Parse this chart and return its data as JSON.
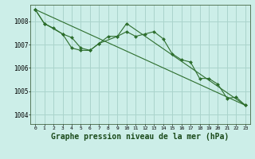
{
  "background_color": "#cceee8",
  "grid_color": "#aad4cc",
  "line_color": "#2d6e2d",
  "marker_color": "#2d6e2d",
  "xlabel": "Graphe pression niveau de la mer (hPa)",
  "xlabel_fontsize": 7,
  "yticks": [
    1004,
    1005,
    1006,
    1007,
    1008
  ],
  "xticks": [
    0,
    1,
    2,
    3,
    4,
    5,
    6,
    7,
    8,
    9,
    10,
    11,
    12,
    13,
    14,
    15,
    16,
    17,
    18,
    19,
    20,
    21,
    22,
    23
  ],
  "ylim": [
    1003.6,
    1008.7
  ],
  "xlim": [
    -0.5,
    23.5
  ],
  "series1_x": [
    0,
    1,
    2,
    3,
    4,
    5,
    6,
    7,
    8,
    9,
    10,
    11,
    12,
    13,
    14,
    15,
    16,
    17,
    18,
    19,
    20,
    21,
    22,
    23
  ],
  "series1_y": [
    1008.5,
    1007.9,
    1007.7,
    1007.45,
    1006.85,
    1006.75,
    1006.75,
    1007.05,
    1007.35,
    1007.35,
    1007.55,
    1007.35,
    1007.45,
    1007.55,
    1007.25,
    1006.6,
    1006.35,
    1006.25,
    1005.55,
    1005.55,
    1005.3,
    1004.7,
    1004.75,
    1004.4
  ],
  "series2_x": [
    0,
    1,
    3,
    4,
    5,
    6,
    7,
    9,
    10,
    23
  ],
  "series2_y": [
    1008.5,
    1007.9,
    1007.45,
    1007.3,
    1006.85,
    1006.75,
    1007.05,
    1007.35,
    1007.9,
    1004.4
  ],
  "trend_x": [
    0,
    23
  ],
  "trend_y": [
    1008.5,
    1004.4
  ]
}
